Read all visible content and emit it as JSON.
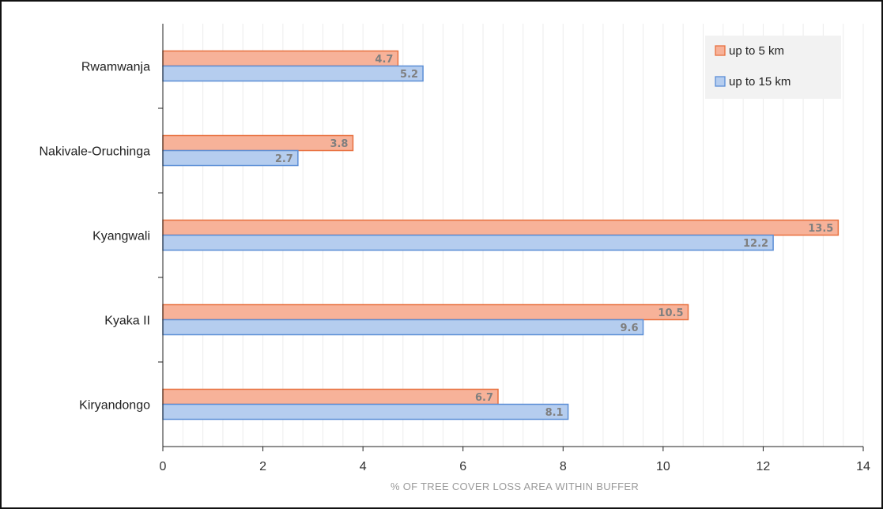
{
  "chart_data": {
    "type": "bar",
    "orientation": "horizontal",
    "categories": [
      "Rwamwanja",
      "Nakivale-Oruchinga",
      "Kyangwali",
      "Kyaka II",
      "Kiryandongo"
    ],
    "series": [
      {
        "name": "up to 5 km",
        "color": "#f7b299",
        "stroke": "#e8703f",
        "values": [
          4.7,
          3.8,
          13.5,
          10.5,
          6.7
        ]
      },
      {
        "name": "up to 15 km",
        "color": "#b5cdef",
        "stroke": "#5b8ed6",
        "values": [
          5.2,
          2.7,
          12.2,
          9.6,
          8.1
        ]
      }
    ],
    "xlabel": "% OF TREE COVER LOSS AREA WITHIN BUFFER",
    "ylabel": "",
    "xlim": [
      0,
      14
    ],
    "xticks": [
      0,
      2,
      4,
      6,
      8,
      10,
      12,
      14
    ],
    "grid": true,
    "legend_position": "top-right"
  }
}
